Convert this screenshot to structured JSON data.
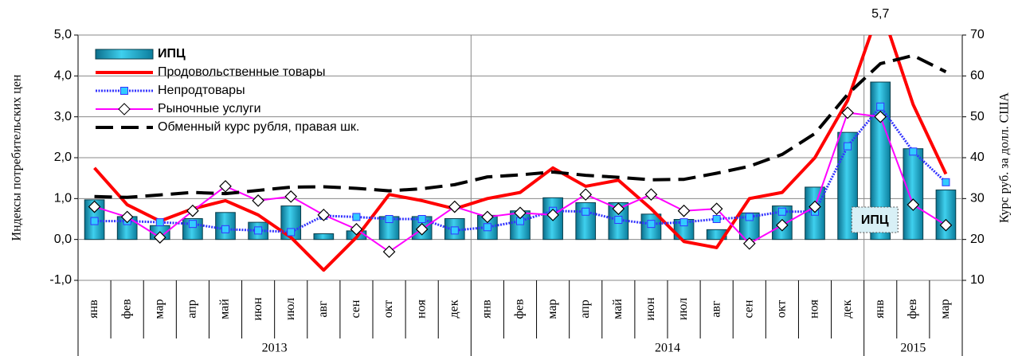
{
  "chart_data": {
    "type": "combo",
    "ylabel": "Индексы потребительских цен",
    "y2label": "Курс руб. за долл. США",
    "categories": [
      "янв",
      "фев",
      "мар",
      "апр",
      "май",
      "июн",
      "июл",
      "авг",
      "сен",
      "окт",
      "ноя",
      "дек",
      "янв",
      "фев",
      "мар",
      "апр",
      "май",
      "июн",
      "июл",
      "авг",
      "сен",
      "окт",
      "ноя",
      "дек",
      "янв",
      "фев",
      "мар"
    ],
    "category_groups": [
      "2013",
      "2013",
      "2013",
      "2013",
      "2013",
      "2013",
      "2013",
      "2013",
      "2013",
      "2013",
      "2013",
      "2013",
      "2014",
      "2014",
      "2014",
      "2014",
      "2014",
      "2014",
      "2014",
      "2014",
      "2014",
      "2014",
      "2014",
      "2014",
      "2015",
      "2015",
      "2015"
    ],
    "ylim": [
      -1,
      5
    ],
    "yticks": [
      {
        "value": -1,
        "label": "-1,0"
      },
      {
        "value": 0,
        "label": "0,0"
      },
      {
        "value": 1,
        "label": "1,0"
      },
      {
        "value": 2,
        "label": "2,0"
      },
      {
        "value": 3,
        "label": "3,0"
      },
      {
        "value": 4,
        "label": "4,0"
      },
      {
        "value": 5,
        "label": "5,0"
      }
    ],
    "y2lim": [
      10,
      70
    ],
    "y2ticks": [
      10,
      20,
      30,
      40,
      50,
      60,
      70
    ],
    "grid": true,
    "legend": "upper left",
    "series": [
      {
        "name": "ИПЦ",
        "type": "bar",
        "color": "#19a9cc",
        "values": [
          0.97,
          0.56,
          0.34,
          0.51,
          0.66,
          0.42,
          0.82,
          0.14,
          0.21,
          0.56,
          0.56,
          0.51,
          0.59,
          0.7,
          1.02,
          0.9,
          0.9,
          0.62,
          0.49,
          0.24,
          0.65,
          0.82,
          1.28,
          2.62,
          3.85,
          2.22,
          1.21
        ]
      },
      {
        "name": "Продовольственные товары",
        "type": "line",
        "color": "#ff0000",
        "values": [
          1.75,
          0.85,
          0.45,
          0.75,
          0.95,
          0.6,
          0.05,
          -0.75,
          0.05,
          1.1,
          0.95,
          0.75,
          1.0,
          1.15,
          1.75,
          1.3,
          1.45,
          0.75,
          -0.05,
          -0.2,
          1.0,
          1.15,
          2.0,
          3.4,
          5.7,
          3.3,
          1.6
        ],
        "value_labels": [
          null,
          null,
          null,
          null,
          null,
          null,
          null,
          null,
          null,
          null,
          null,
          null,
          null,
          null,
          null,
          null,
          null,
          null,
          null,
          null,
          null,
          null,
          null,
          null,
          "5,7",
          null,
          null
        ]
      },
      {
        "name": "Непродтовары",
        "type": "line",
        "color": "#3333ff",
        "marker": "square",
        "values": [
          0.45,
          0.45,
          0.42,
          0.38,
          0.25,
          0.22,
          0.18,
          0.58,
          0.55,
          0.5,
          0.5,
          0.22,
          0.3,
          0.45,
          0.7,
          0.68,
          0.48,
          0.38,
          0.42,
          0.5,
          0.55,
          0.68,
          0.68,
          2.28,
          3.25,
          2.15,
          1.4
        ]
      },
      {
        "name": "Рыночные услуги",
        "type": "line",
        "color": "#ff00ff",
        "marker": "diamond",
        "values": [
          0.8,
          0.55,
          0.05,
          0.7,
          1.3,
          0.95,
          1.05,
          0.6,
          0.25,
          -0.3,
          0.25,
          0.8,
          0.55,
          0.65,
          0.6,
          1.1,
          0.75,
          1.1,
          0.7,
          0.75,
          -0.1,
          0.35,
          0.8,
          3.1,
          3.0,
          0.85,
          0.35
        ]
      },
      {
        "name": "Обменный  курс рубля, правая шк.",
        "type": "line",
        "color": "#000000",
        "dash": true,
        "axis": "y2",
        "values": [
          30.5,
          30.3,
          30.9,
          31.5,
          31.2,
          32.0,
          32.8,
          32.9,
          32.5,
          31.9,
          32.4,
          33.4,
          35.3,
          35.8,
          36.5,
          35.7,
          35.2,
          34.6,
          34.7,
          36.2,
          37.9,
          40.8,
          45.9,
          55.5,
          63.0,
          65.0,
          61.0
        ]
      }
    ],
    "annotations": [
      {
        "text": "ИПЦ"
      }
    ]
  }
}
